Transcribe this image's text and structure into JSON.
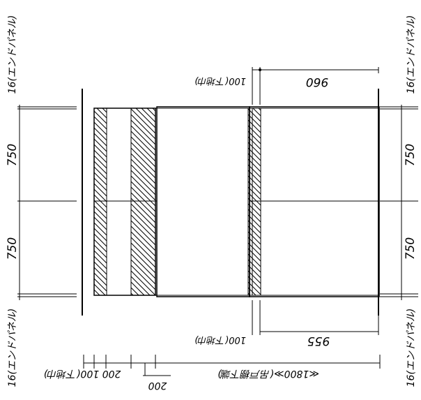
{
  "drawing": {
    "vertical_dims": {
      "left_top_endpanel": "16(エンドパネル)",
      "left_upper_750": "750",
      "left_lower_750": "750",
      "left_bottom_endpanel": "16(エンドパネル)",
      "right_top_endpanel": "16(エンドパネル)",
      "right_upper_750": "750",
      "right_lower_750": "750",
      "right_bottom_endpanel": "16(エンドパネル)"
    },
    "top_dims": {
      "main_960": "960",
      "sub_100": "100(下地巾)"
    },
    "mid_dims": {
      "main_955": "955",
      "sub_100": "100(下地巾)"
    },
    "bottom_dims": {
      "range_1800": "≪1800≫(吊戸棚下端)",
      "left_200_100": "200 100(下地巾)",
      "small_200": "200"
    }
  }
}
